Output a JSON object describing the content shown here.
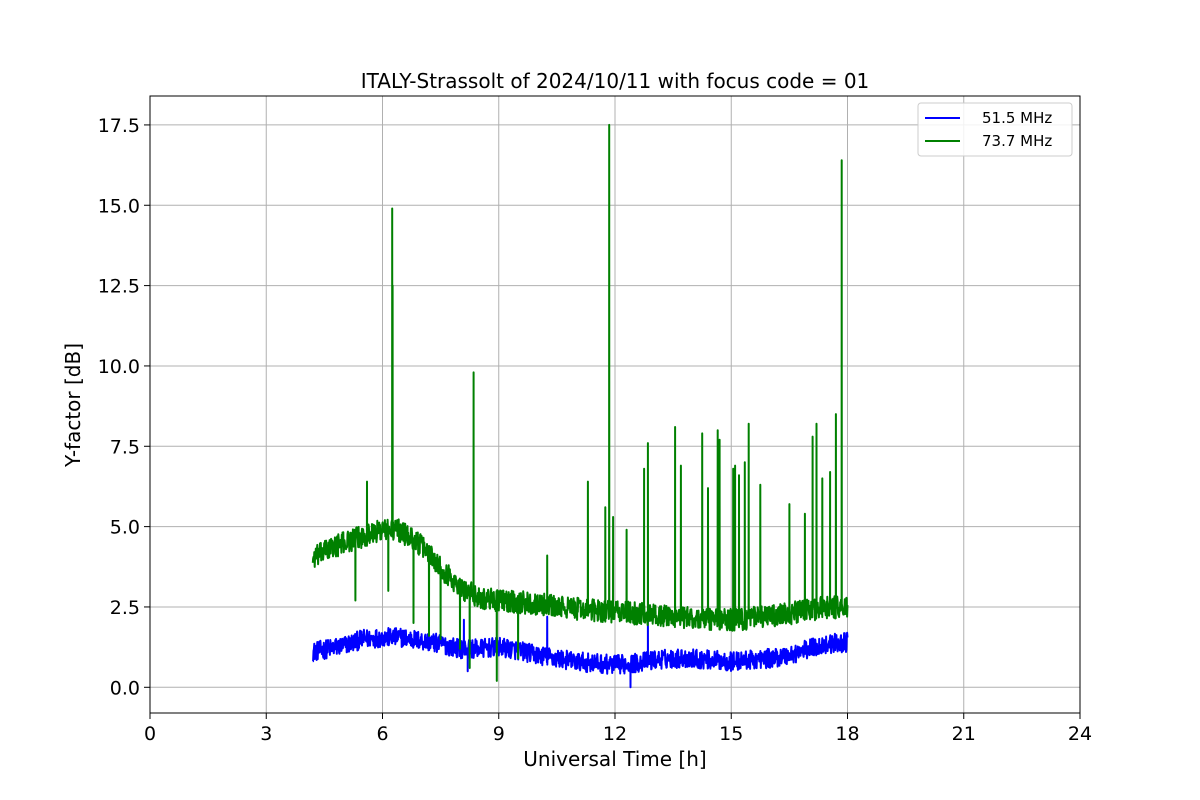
{
  "chart_data": {
    "type": "line",
    "title": "ITALY-Strassolt of 2024/10/11 with focus code = 01",
    "xlabel": "Universal Time [h]",
    "ylabel": "Y-factor [dB]",
    "xlim": [
      0,
      24
    ],
    "ylim": [
      -0.8,
      18.4
    ],
    "xticks": [
      0,
      3,
      6,
      9,
      12,
      15,
      18,
      21,
      24
    ],
    "xtick_labels": [
      "0",
      "3",
      "6",
      "9",
      "12",
      "15",
      "18",
      "21",
      "24"
    ],
    "yticks": [
      0.0,
      2.5,
      5.0,
      7.5,
      10.0,
      12.5,
      15.0,
      17.5
    ],
    "ytick_labels": [
      "0.0",
      "2.5",
      "5.0",
      "7.5",
      "10.0",
      "12.5",
      "15.0",
      "17.5"
    ],
    "grid": true,
    "legend_position": "top-right",
    "series": [
      {
        "name": "51.5 MHz",
        "color": "#0000ff",
        "x_range": [
          4.2,
          18.0
        ],
        "baseline": [
          [
            4.2,
            1.1
          ],
          [
            5.0,
            1.3
          ],
          [
            5.5,
            1.5
          ],
          [
            6.0,
            1.55
          ],
          [
            6.5,
            1.55
          ],
          [
            7.0,
            1.45
          ],
          [
            7.5,
            1.35
          ],
          [
            8.0,
            1.2
          ],
          [
            8.5,
            1.2
          ],
          [
            9.0,
            1.25
          ],
          [
            9.5,
            1.15
          ],
          [
            10.0,
            1.0
          ],
          [
            10.5,
            0.9
          ],
          [
            11.0,
            0.8
          ],
          [
            11.5,
            0.75
          ],
          [
            12.0,
            0.7
          ],
          [
            12.5,
            0.75
          ],
          [
            13.0,
            0.85
          ],
          [
            13.5,
            0.9
          ],
          [
            14.0,
            0.9
          ],
          [
            14.5,
            0.85
          ],
          [
            15.0,
            0.8
          ],
          [
            15.5,
            0.85
          ],
          [
            16.0,
            0.9
          ],
          [
            16.5,
            1.0
          ],
          [
            17.0,
            1.2
          ],
          [
            17.5,
            1.35
          ],
          [
            18.0,
            1.4
          ]
        ],
        "noise_amplitude": 0.3,
        "spikes": [
          [
            10.25,
            2.2
          ],
          [
            12.85,
            2.1
          ],
          [
            8.1,
            2.1
          ]
        ],
        "dips": [
          [
            8.2,
            0.5
          ],
          [
            12.4,
            0.0
          ]
        ]
      },
      {
        "name": "73.7 MHz",
        "color": "#008000",
        "x_range": [
          4.2,
          18.0
        ],
        "baseline": [
          [
            4.2,
            4.0
          ],
          [
            4.6,
            4.3
          ],
          [
            5.0,
            4.5
          ],
          [
            5.5,
            4.7
          ],
          [
            6.0,
            4.9
          ],
          [
            6.4,
            4.9
          ],
          [
            6.8,
            4.6
          ],
          [
            7.2,
            4.2
          ],
          [
            7.6,
            3.6
          ],
          [
            8.0,
            3.1
          ],
          [
            8.5,
            2.8
          ],
          [
            9.0,
            2.7
          ],
          [
            9.5,
            2.65
          ],
          [
            10.0,
            2.6
          ],
          [
            10.5,
            2.5
          ],
          [
            11.0,
            2.45
          ],
          [
            12.0,
            2.35
          ],
          [
            13.0,
            2.25
          ],
          [
            14.0,
            2.15
          ],
          [
            15.0,
            2.1
          ],
          [
            15.5,
            2.15
          ],
          [
            16.0,
            2.2
          ],
          [
            16.5,
            2.3
          ],
          [
            17.0,
            2.4
          ],
          [
            17.5,
            2.5
          ],
          [
            18.0,
            2.45
          ]
        ],
        "noise_amplitude": 0.35,
        "spikes": [
          [
            5.6,
            6.4
          ],
          [
            6.25,
            14.9
          ],
          [
            6.26,
            12.5
          ],
          [
            8.35,
            9.8
          ],
          [
            10.25,
            4.1
          ],
          [
            11.3,
            6.4
          ],
          [
            11.75,
            5.6
          ],
          [
            11.85,
            17.5
          ],
          [
            11.95,
            5.3
          ],
          [
            12.3,
            4.9
          ],
          [
            12.75,
            6.8
          ],
          [
            12.85,
            7.6
          ],
          [
            13.55,
            8.1
          ],
          [
            13.7,
            6.9
          ],
          [
            14.25,
            7.9
          ],
          [
            14.4,
            6.2
          ],
          [
            14.65,
            8.0
          ],
          [
            14.7,
            7.7
          ],
          [
            15.05,
            6.8
          ],
          [
            15.1,
            6.9
          ],
          [
            15.2,
            6.6
          ],
          [
            15.35,
            7.0
          ],
          [
            15.45,
            8.2
          ],
          [
            15.75,
            6.3
          ],
          [
            16.5,
            5.7
          ],
          [
            16.9,
            5.4
          ],
          [
            17.1,
            7.8
          ],
          [
            17.2,
            8.2
          ],
          [
            17.35,
            6.5
          ],
          [
            17.55,
            6.7
          ],
          [
            17.7,
            8.5
          ],
          [
            17.85,
            16.4
          ]
        ],
        "dips": [
          [
            5.3,
            2.7
          ],
          [
            6.15,
            3.0
          ],
          [
            6.8,
            2.0
          ],
          [
            7.5,
            1.5
          ],
          [
            8.0,
            1.2
          ],
          [
            8.25,
            0.6
          ],
          [
            8.95,
            0.2
          ],
          [
            9.5,
            0.9
          ],
          [
            7.2,
            1.6
          ]
        ]
      }
    ]
  }
}
